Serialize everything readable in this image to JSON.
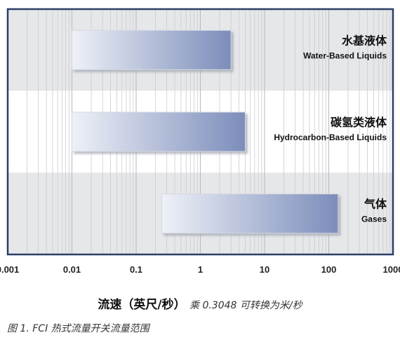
{
  "chart_data": {
    "type": "bar",
    "orientation": "horizontal-range",
    "x_scale": "log",
    "xlim": [
      0.001,
      1000
    ],
    "x_ticks": [
      "0.001",
      "0.01",
      "0.1",
      "1",
      "10",
      "100",
      "1000"
    ],
    "x_tick_values": [
      0.001,
      0.01,
      0.1,
      1,
      10,
      100,
      1000
    ],
    "grid": true,
    "categories": [
      {
        "label_cn": "水基液体",
        "label_en": "Water-Based Liquids",
        "min": 0.01,
        "max": 3
      },
      {
        "label_cn": "碳氢类液体",
        "label_en": "Hydrocarbon-Based Liquids",
        "min": 0.01,
        "max": 5
      },
      {
        "label_cn": "气体",
        "label_en": "Gases",
        "min": 0.25,
        "max": 140
      }
    ],
    "xlabel_main": "流速（英尺/秒）",
    "xlabel_note": "乘 0.3048 可转换为米/秒",
    "colors": {
      "band_alt": "#e6e7e9",
      "frame": "#2b3f66",
      "bar_light": "#eef1f7",
      "bar_dark": "#7c8dbb",
      "bar_edge": "#d4d8e2"
    }
  },
  "caption": "图 1.   FCI 热式流量开关流量范围"
}
